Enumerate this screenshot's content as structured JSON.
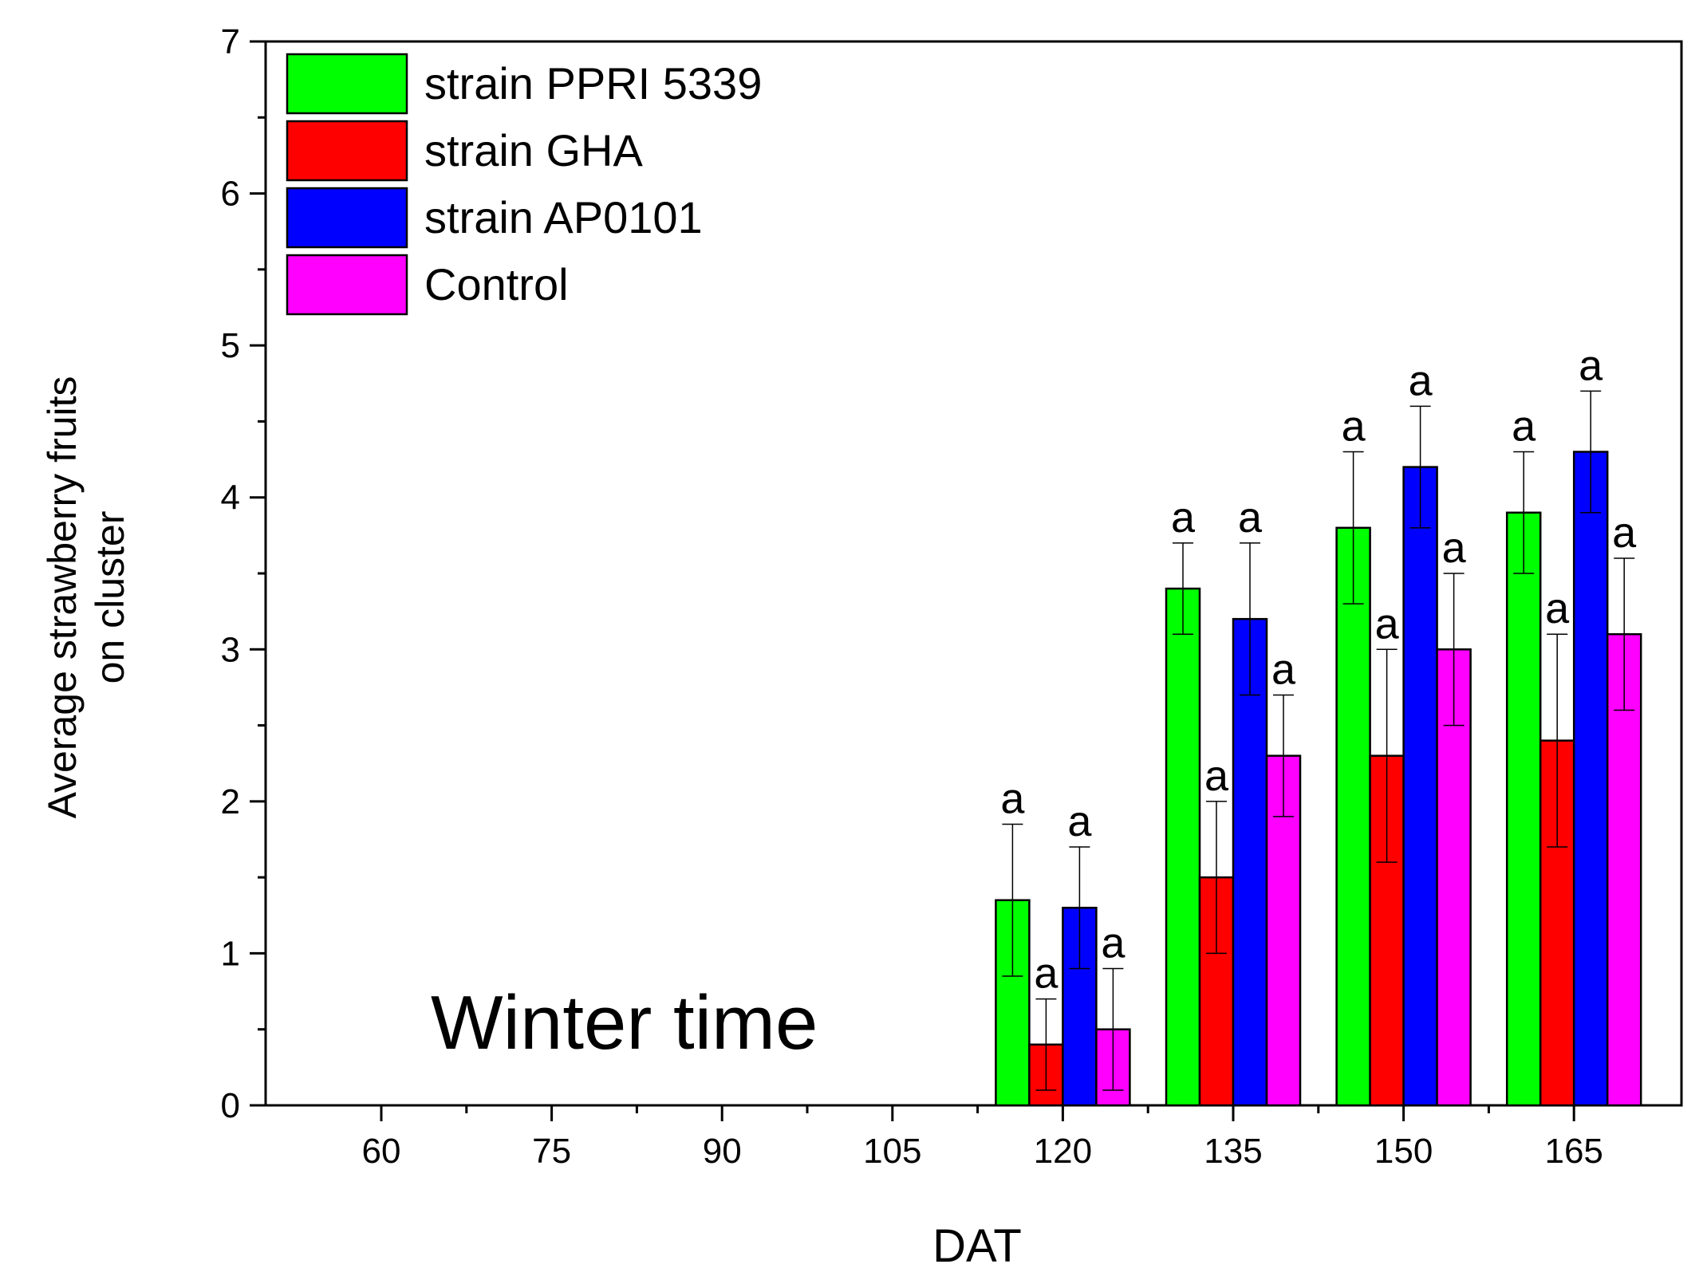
{
  "chart_data": {
    "type": "bar",
    "categories": [
      "60",
      "75",
      "90",
      "105",
      "120",
      "135",
      "150",
      "165"
    ],
    "xlabel": "DAT",
    "ylabel_lines": [
      "Average strawberry fruits",
      "on cluster"
    ],
    "ylim": [
      0,
      7
    ],
    "yticks": [
      "0",
      "1",
      "2",
      "3",
      "4",
      "5",
      "6",
      "7"
    ],
    "annotation": "Winter time",
    "legend_position": "top-left",
    "series": [
      {
        "name": "strain PPRI 5339",
        "color": "#00ff00",
        "values": [
          null,
          null,
          null,
          null,
          1.35,
          3.4,
          3.8,
          3.9
        ],
        "errors": [
          null,
          null,
          null,
          null,
          0.5,
          0.3,
          0.5,
          0.4
        ],
        "labels": [
          "",
          "",
          "",
          "",
          "a",
          "a",
          "a",
          "a"
        ]
      },
      {
        "name": "strain GHA",
        "color": "#ff0000",
        "values": [
          null,
          null,
          null,
          null,
          0.4,
          1.5,
          2.3,
          2.4
        ],
        "errors": [
          null,
          null,
          null,
          null,
          0.3,
          0.5,
          0.7,
          0.7
        ],
        "labels": [
          "",
          "",
          "",
          "",
          "a",
          "a",
          "a",
          "a"
        ]
      },
      {
        "name": "strain AP0101",
        "color": "#0000ff",
        "values": [
          null,
          null,
          null,
          null,
          1.3,
          3.2,
          4.2,
          4.3
        ],
        "errors": [
          null,
          null,
          null,
          null,
          0.4,
          0.5,
          0.4,
          0.4
        ],
        "labels": [
          "",
          "",
          "",
          "",
          "a",
          "a",
          "a",
          "a"
        ]
      },
      {
        "name": "Control",
        "color": "#ff00ff",
        "values": [
          null,
          null,
          null,
          null,
          0.5,
          2.3,
          3.0,
          3.1
        ],
        "errors": [
          null,
          null,
          null,
          null,
          0.4,
          0.4,
          0.5,
          0.5
        ],
        "labels": [
          "",
          "",
          "",
          "",
          "a",
          "a",
          "a",
          "a"
        ]
      }
    ]
  }
}
